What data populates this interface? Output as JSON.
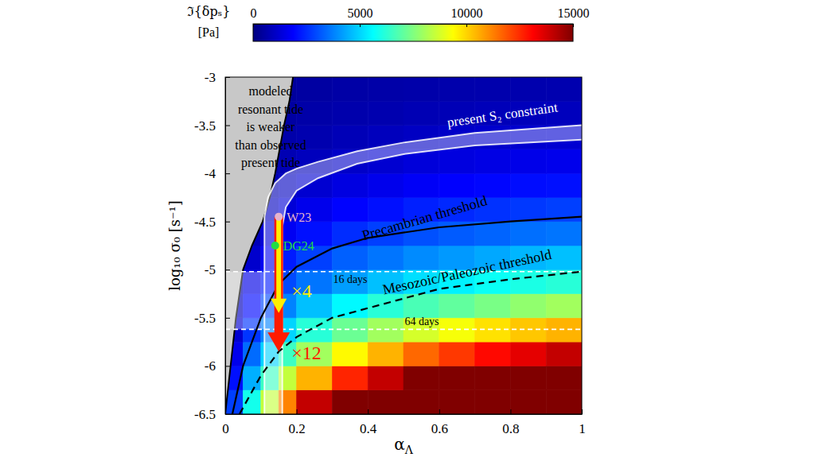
{
  "chart_data": {
    "type": "heatmap",
    "x_label": {
      "text": "α",
      "sub": "Λ"
    },
    "y_label": "log₁₀ σ₀   [s⁻¹]",
    "xlim": [
      0,
      1
    ],
    "ylim": [
      -6.5,
      -3
    ],
    "xticks": [
      0,
      0.2,
      0.4,
      0.6,
      0.8,
      1
    ],
    "yticks": [
      -6.5,
      -6,
      -5.5,
      -5,
      -4.5,
      -4,
      -3.5,
      -3
    ],
    "colorbar": {
      "title": "ℑ{δpₛ}",
      "unit": "[Pa]",
      "range": [
        0,
        15000
      ],
      "ticks": [
        0,
        5000,
        10000,
        15000
      ]
    },
    "x_bins": [
      0,
      0.05,
      0.1,
      0.15,
      0.2,
      0.3,
      0.4,
      0.5,
      0.6,
      0.7,
      0.8,
      0.9,
      1
    ],
    "y_bins": [
      -6.5,
      -6.25,
      -6,
      -5.75,
      -5.5,
      -5.25,
      -5,
      -4.75,
      -4.5,
      -4.25,
      -4,
      -3.75,
      -3.5,
      -3.25,
      -3
    ],
    "z": [
      [
        2800,
        5900,
        8500,
        11200,
        14000,
        15800,
        17000,
        17600,
        18000,
        18500,
        18800,
        19000
      ],
      [
        2100,
        4450,
        6500,
        8500,
        10500,
        12600,
        14000,
        15000,
        15550,
        16200,
        16700,
        17000
      ],
      [
        1600,
        3450,
        5000,
        6500,
        8000,
        9450,
        10500,
        11600,
        12300,
        13000,
        13500,
        14000
      ],
      [
        1200,
        2650,
        3800,
        5000,
        6200,
        7200,
        8000,
        8750,
        9250,
        9800,
        10200,
        10500
      ],
      [
        900,
        2000,
        2950,
        3800,
        4700,
        5550,
        6200,
        6700,
        7050,
        7400,
        7750,
        8000
      ],
      [
        700,
        1520,
        2250,
        2950,
        3600,
        4200,
        4700,
        5150,
        5430,
        5750,
        6000,
        6200
      ],
      [
        600,
        1140,
        1700,
        2250,
        2800,
        3280,
        3600,
        3920,
        4120,
        4350,
        4550,
        4700
      ],
      [
        500,
        860,
        1280,
        1700,
        2100,
        2520,
        2800,
        3050,
        3220,
        3350,
        3500,
        3600
      ],
      [
        410,
        680,
        960,
        1280,
        1600,
        1900,
        2100,
        2330,
        2460,
        2600,
        2700,
        2800
      ],
      [
        350,
        580,
        750,
        960,
        1200,
        1440,
        1600,
        1760,
        1860,
        1950,
        2050,
        2100
      ],
      [
        290,
        480,
        620,
        750,
        900,
        1080,
        1200,
        1330,
        1410,
        1480,
        1550,
        1600
      ],
      [
        250,
        400,
        510,
        620,
        700,
        820,
        900,
        1000,
        1060,
        1130,
        1170,
        1200
      ],
      [
        210,
        330,
        430,
        510,
        600,
        660,
        700,
        770,
        800,
        850,
        870,
        900
      ],
      [
        180,
        280,
        360,
        430,
        500,
        560,
        600,
        630,
        650,
        670,
        690,
        700
      ]
    ],
    "series": [
      {
        "type": "area",
        "color": "#c8c8c8",
        "x": [
          0,
          0.015,
          0.03,
          0.05,
          0.075,
          0.105,
          0.125,
          0.14,
          0.165,
          0.18,
          0.19
        ],
        "values": [
          -6.5,
          -6.0,
          -5.5,
          -5.0,
          -4.75,
          -4.5,
          -4.25,
          -4.0,
          -3.5,
          -3.25,
          -3.0
        ]
      },
      {
        "name": "Precambrian threshold",
        "type": "line",
        "color": "#000000",
        "line_style": "solid",
        "x": [
          0.02,
          0.05,
          0.1,
          0.15,
          0.2,
          0.3,
          0.4,
          0.6,
          0.8,
          1
        ],
        "values": [
          -6.5,
          -6.0,
          -5.5,
          -5.15,
          -4.97,
          -4.78,
          -4.67,
          -4.56,
          -4.5,
          -4.45
        ]
      },
      {
        "name": "Mesozoic/Paleozoic threshold",
        "type": "line",
        "color": "#000000",
        "line_style": "dashed",
        "x": [
          0.04,
          0.1,
          0.15,
          0.2,
          0.3,
          0.4,
          0.6,
          0.8,
          1
        ],
        "values": [
          -6.5,
          -6.1,
          -5.85,
          -5.7,
          -5.5,
          -5.4,
          -5.2,
          -5.1,
          -5.02
        ]
      }
    ],
    "region_label": [
      "modeled",
      "resonant tide",
      "is weaker",
      "than observed",
      "present tide"
    ],
    "s2_band": {
      "label": "present S₂ constraint",
      "color": "#ffffff",
      "upper_x": [
        0.11,
        0.11,
        0.12,
        0.14,
        0.17,
        0.2,
        0.26,
        0.37,
        0.5,
        0.7,
        1
      ],
      "upper_y": [
        -6.5,
        -4.45,
        -4.25,
        -4.1,
        -4.0,
        -3.95,
        -3.88,
        -3.77,
        -3.68,
        -3.58,
        -3.5
      ],
      "lower_x": [
        0.16,
        0.16,
        0.17,
        0.2,
        0.26,
        0.37,
        0.5,
        0.7,
        1
      ],
      "lower_y": [
        -6.5,
        -4.55,
        -4.35,
        -4.18,
        -4.05,
        -3.9,
        -3.8,
        -3.71,
        -3.65
      ]
    },
    "period_band": {
      "color": "#ffffff",
      "lines": [
        {
          "label": "16 days",
          "value": -5.02
        },
        {
          "label": "64 days",
          "value": -5.62
        }
      ]
    },
    "arrows": [
      {
        "label": "×12",
        "x": 0.15,
        "from": -4.45,
        "to": -5.85,
        "color": "#ff1a00"
      },
      {
        "label": "×4",
        "x": 0.15,
        "from": -4.45,
        "to": -5.45,
        "color": "#ffee00"
      }
    ],
    "points": [
      {
        "label": "W23",
        "x": 0.15,
        "y": -4.45,
        "color": "#e6b3cc"
      },
      {
        "label": "DG24",
        "x": 0.14,
        "y": -4.75,
        "color": "#22dd44"
      }
    ]
  }
}
